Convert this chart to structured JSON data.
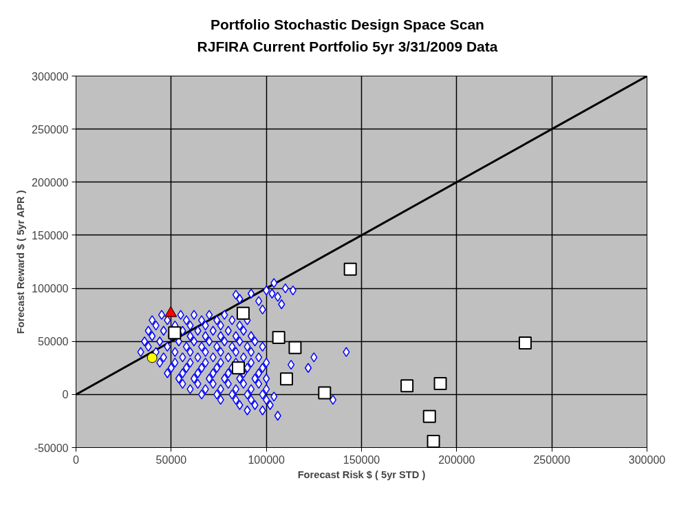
{
  "chart_data": {
    "type": "scatter",
    "title": "Portfolio Stochastic Design Space Scan\nRJFIRA Current Portfolio 5yr 3/31/2009 Data",
    "xlabel": "Forecast Risk $ ( 5yr STD )",
    "ylabel": "Forecast Reward $ ( 5yr APR )",
    "xlim": [
      0,
      300000
    ],
    "xticks": [
      0,
      50000,
      100000,
      150000,
      200000,
      250000,
      300000
    ],
    "ylim": [
      -50000,
      300000
    ],
    "yticks": [
      -50000,
      0,
      50000,
      100000,
      150000,
      200000,
      250000,
      300000
    ],
    "grid": true,
    "series": [
      {
        "marker": "diamond",
        "color": "#0000ff",
        "x": [
          45000,
          55000,
          62000,
          70000,
          78000,
          40000,
          48000,
          58000,
          66000,
          74000,
          82000,
          90000,
          42000,
          52000,
          60000,
          68000,
          76000,
          86000,
          38000,
          46000,
          56000,
          64000,
          72000,
          80000,
          88000,
          40000,
          50000,
          60000,
          68000,
          76000,
          84000,
          92000,
          36000,
          44000,
          54000,
          62000,
          70000,
          78000,
          86000,
          94000,
          38000,
          48000,
          58000,
          66000,
          74000,
          82000,
          90000,
          98000,
          34000,
          42000,
          52000,
          60000,
          68000,
          76000,
          84000,
          92000,
          46000,
          56000,
          64000,
          72000,
          80000,
          88000,
          96000,
          44000,
          52000,
          60000,
          68000,
          76000,
          84000,
          92000,
          100000,
          50000,
          58000,
          66000,
          74000,
          82000,
          90000,
          98000,
          48000,
          56000,
          64000,
          72000,
          80000,
          88000,
          96000,
          54000,
          62000,
          70000,
          78000,
          86000,
          94000,
          100000,
          56000,
          64000,
          72000,
          80000,
          88000,
          96000,
          60000,
          68000,
          76000,
          84000,
          92000,
          100000,
          66000,
          74000,
          82000,
          90000,
          98000,
          76000,
          84000,
          92000,
          100000,
          86000,
          94000,
          102000,
          90000,
          98000,
          86000,
          92000,
          96000,
          100000,
          104000,
          106000,
          110000,
          114000,
          108000,
          98000,
          84000,
          103000,
          142000,
          135000,
          125000,
          122000,
          113000,
          104000,
          106000
        ],
        "values": [
          75000,
          75000,
          75000,
          75000,
          75000,
          70000,
          70000,
          70000,
          70000,
          70000,
          70000,
          70000,
          65000,
          65000,
          65000,
          65000,
          65000,
          65000,
          60000,
          60000,
          60000,
          60000,
          60000,
          60000,
          60000,
          55000,
          55000,
          55000,
          55000,
          55000,
          55000,
          55000,
          50000,
          50000,
          50000,
          50000,
          50000,
          50000,
          50000,
          50000,
          45000,
          45000,
          45000,
          45000,
          45000,
          45000,
          45000,
          45000,
          40000,
          40000,
          40000,
          40000,
          40000,
          40000,
          40000,
          40000,
          35000,
          35000,
          35000,
          35000,
          35000,
          35000,
          35000,
          30000,
          30000,
          30000,
          30000,
          30000,
          30000,
          30000,
          30000,
          25000,
          25000,
          25000,
          25000,
          25000,
          25000,
          25000,
          20000,
          20000,
          20000,
          20000,
          20000,
          20000,
          20000,
          15000,
          15000,
          15000,
          15000,
          15000,
          15000,
          15000,
          10000,
          10000,
          10000,
          10000,
          10000,
          10000,
          5000,
          5000,
          5000,
          5000,
          5000,
          5000,
          0,
          0,
          0,
          0,
          0,
          -5000,
          -5000,
          -5000,
          -5000,
          -10000,
          -10000,
          -10000,
          -15000,
          -15000,
          90000,
          95000,
          88000,
          98000,
          105000,
          92000,
          100000,
          98000,
          85000,
          80000,
          94000,
          95000,
          40000,
          -5000,
          35000,
          25000,
          28000,
          -2000,
          -20000
        ]
      },
      {
        "marker": "square",
        "color": "#ffffff",
        "x": [
          51800,
          87800,
          85300,
          106500,
          115100,
          110600,
          130600,
          144100,
          173900,
          191400,
          236000,
          185700,
          187800
        ],
        "values": [
          58100,
          76500,
          25000,
          53700,
          44100,
          14700,
          1500,
          118000,
          8100,
          10300,
          48500,
          -20600,
          -44100
        ]
      },
      {
        "marker": "triangle",
        "color": "#ff0000",
        "x": [
          49800
        ],
        "values": [
          76500
        ]
      },
      {
        "marker": "circle",
        "color": "#ffff00",
        "x": [
          40000
        ],
        "values": [
          34600
        ]
      },
      {
        "type": "line",
        "color": "#000000",
        "x": [
          0,
          300000
        ],
        "values": [
          0,
          300000
        ]
      }
    ]
  }
}
